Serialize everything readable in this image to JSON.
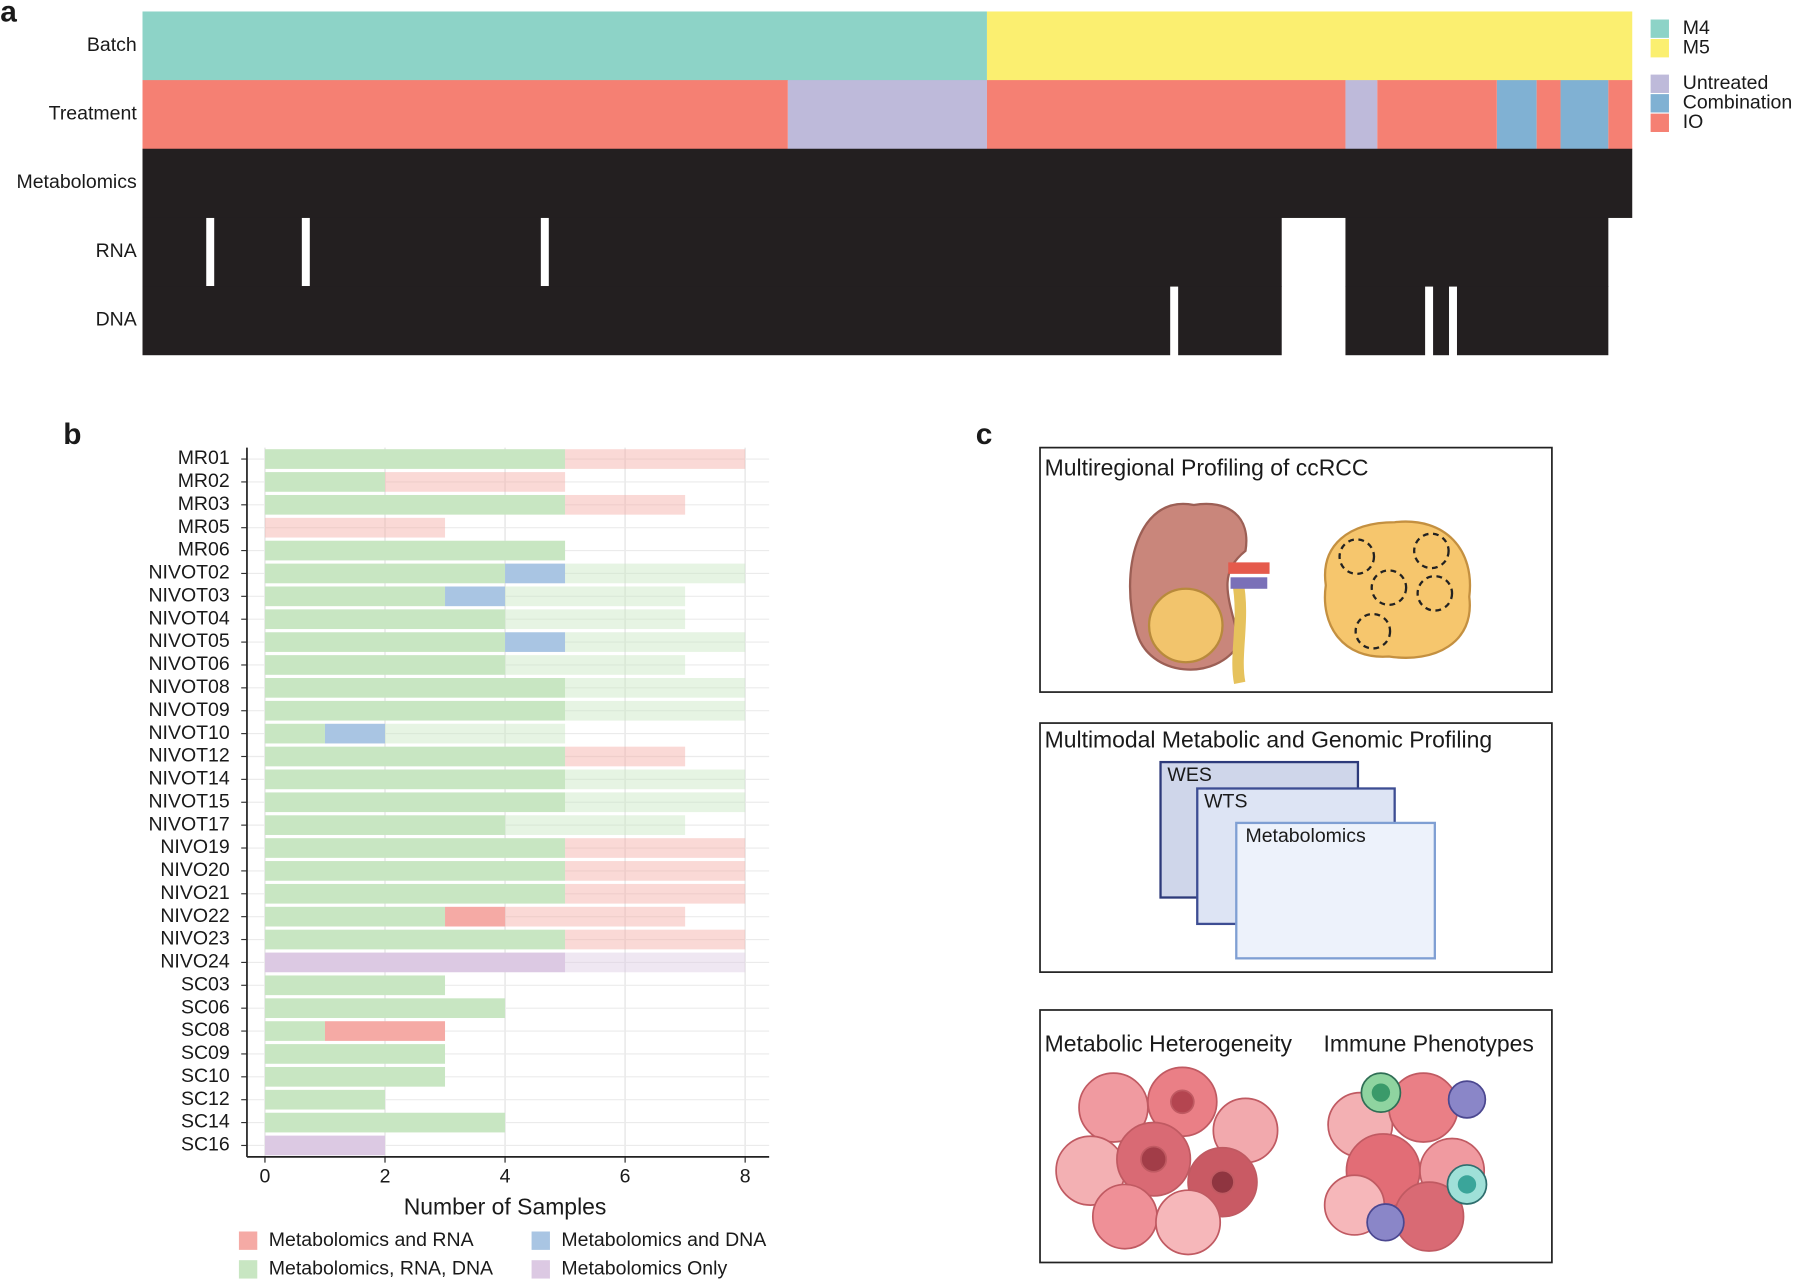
{
  "chart_data": [
    {
      "type": "heatmap",
      "panel_label": "a",
      "xlim": [
        0,
        187
      ],
      "tracks": [
        {
          "label": "Batch",
          "groups": [
            {
              "name": "M4",
              "color": "#8dd3c7",
              "segments": [
                [
                  0,
                  106
                ]
              ]
            },
            {
              "name": "M5",
              "color": "#fbef70",
              "segments": [
                [
                  106,
                  187
                ]
              ]
            }
          ]
        },
        {
          "label": "Treatment",
          "groups": [
            {
              "name": "Untreated",
              "color": "#bebada",
              "segments": [
                [
                  81,
                  106
                ],
                [
                  151,
                  155
                ]
              ]
            },
            {
              "name": "Combination",
              "color": "#80b1d3",
              "segments": [
                [
                  170,
                  175
                ],
                [
                  178,
                  184
                ]
              ]
            },
            {
              "name": "IO",
              "color": "#f58073",
              "segments": [
                [
                  0,
                  81
                ],
                [
                  106,
                  151
                ],
                [
                  155,
                  170
                ],
                [
                  175,
                  178
                ],
                [
                  184,
                  187
                ]
              ]
            }
          ]
        },
        {
          "label": "Metabolomics",
          "color": "#231f20",
          "segments": [
            [
              0,
              187
            ]
          ]
        },
        {
          "label": "RNA",
          "color": "#231f20",
          "segments": [
            [
              0,
              8
            ],
            [
              9,
              20
            ],
            [
              21,
              50
            ],
            [
              51,
              143
            ],
            [
              151,
              184
            ]
          ]
        },
        {
          "label": "DNA",
          "color": "#231f20",
          "segments": [
            [
              0,
              129
            ],
            [
              130,
              143
            ],
            [
              151,
              161
            ],
            [
              162,
              164
            ],
            [
              165,
              184
            ]
          ]
        }
      ]
    },
    {
      "type": "bar",
      "orientation": "horizontal",
      "stacked": true,
      "panel_label": "b",
      "categories": [
        "MR01",
        "MR02",
        "MR03",
        "MR05",
        "MR06",
        "NIVOT02",
        "NIVOT03",
        "NIVOT04",
        "NIVOT05",
        "NIVOT06",
        "NIVOT08",
        "NIVOT09",
        "NIVOT10",
        "NIVOT12",
        "NIVOT14",
        "NIVOT15",
        "NIVOT17",
        "NIVO19",
        "NIVO20",
        "NIVO21",
        "NIVO22",
        "NIVO23",
        "NIVO24",
        "SC03",
        "SC06",
        "SC08",
        "SC09",
        "SC10",
        "SC12",
        "SC14",
        "SC16"
      ],
      "series": [
        {
          "name": "Metabolomics, RNA, DNA",
          "color": "#c8e6c2",
          "values": [
            5,
            2,
            5,
            0,
            5,
            4,
            3,
            4,
            4,
            4,
            5,
            5,
            1,
            5,
            5,
            5,
            4,
            5,
            5,
            5,
            3,
            5,
            0,
            3,
            4,
            1,
            3,
            3,
            2,
            4,
            0
          ],
          "faded_values": [
            0,
            0,
            0,
            0,
            0,
            3,
            3,
            3,
            3,
            3,
            3,
            3,
            3,
            0,
            3,
            3,
            3,
            0,
            0,
            0,
            0,
            0,
            0,
            0,
            0,
            0,
            0,
            0,
            0,
            0,
            0
          ]
        },
        {
          "name": "Metabolomics and RNA",
          "color": "#f5aaa5",
          "values": [
            0,
            0,
            0,
            0,
            0,
            0,
            0,
            0,
            0,
            0,
            0,
            0,
            0,
            0,
            0,
            0,
            0,
            0,
            0,
            0,
            1,
            0,
            0,
            0,
            0,
            2,
            0,
            0,
            0,
            0,
            0
          ],
          "faded_values": [
            3,
            3,
            2,
            3,
            0,
            0,
            0,
            0,
            0,
            0,
            0,
            0,
            0,
            2,
            0,
            0,
            0,
            3,
            3,
            3,
            3,
            3,
            0,
            0,
            0,
            0,
            0,
            0,
            0,
            0,
            0
          ]
        },
        {
          "name": "Metabolomics and DNA",
          "color": "#a9c5e3",
          "values": [
            0,
            0,
            0,
            0,
            0,
            1,
            1,
            0,
            1,
            0,
            0,
            0,
            1,
            0,
            0,
            0,
            0,
            0,
            0,
            0,
            0,
            0,
            0,
            0,
            0,
            0,
            0,
            0,
            0,
            0,
            0
          ],
          "faded_values": [
            0,
            0,
            0,
            0,
            0,
            0,
            0,
            0,
            0,
            0,
            0,
            0,
            0,
            0,
            0,
            0,
            0,
            0,
            0,
            0,
            0,
            0,
            0,
            0,
            0,
            0,
            0,
            0,
            0,
            0,
            0
          ]
        },
        {
          "name": "Metabolomics Only",
          "color": "#dcc9e3",
          "values": [
            0,
            0,
            0,
            0,
            0,
            0,
            0,
            0,
            0,
            0,
            0,
            0,
            0,
            0,
            0,
            0,
            0,
            0,
            0,
            0,
            0,
            0,
            5,
            0,
            0,
            0,
            0,
            0,
            0,
            0,
            2
          ],
          "faded_values": [
            0,
            0,
            0,
            0,
            0,
            0,
            0,
            0,
            0,
            0,
            0,
            0,
            0,
            0,
            0,
            0,
            0,
            0,
            0,
            0,
            0,
            0,
            3,
            0,
            0,
            0,
            0,
            0,
            0,
            0,
            0
          ]
        }
      ],
      "xlim": [
        -0.3,
        8.4
      ],
      "xticks": [
        0,
        2,
        4,
        6,
        8
      ],
      "x_label": "Number of Samples",
      "grid": true
    }
  ],
  "diagram": {
    "panel_label": "c",
    "boxes": [
      {
        "title": "Multiregional Profiling of ccRCC"
      },
      {
        "title": "Multimodal Metabolic and Genomic Profiling",
        "layers": [
          "WES",
          "WTS",
          "Metabolomics"
        ]
      },
      {
        "captions": [
          "Metabolic Heterogeneity",
          "Immune Phenotypes"
        ]
      }
    ]
  }
}
